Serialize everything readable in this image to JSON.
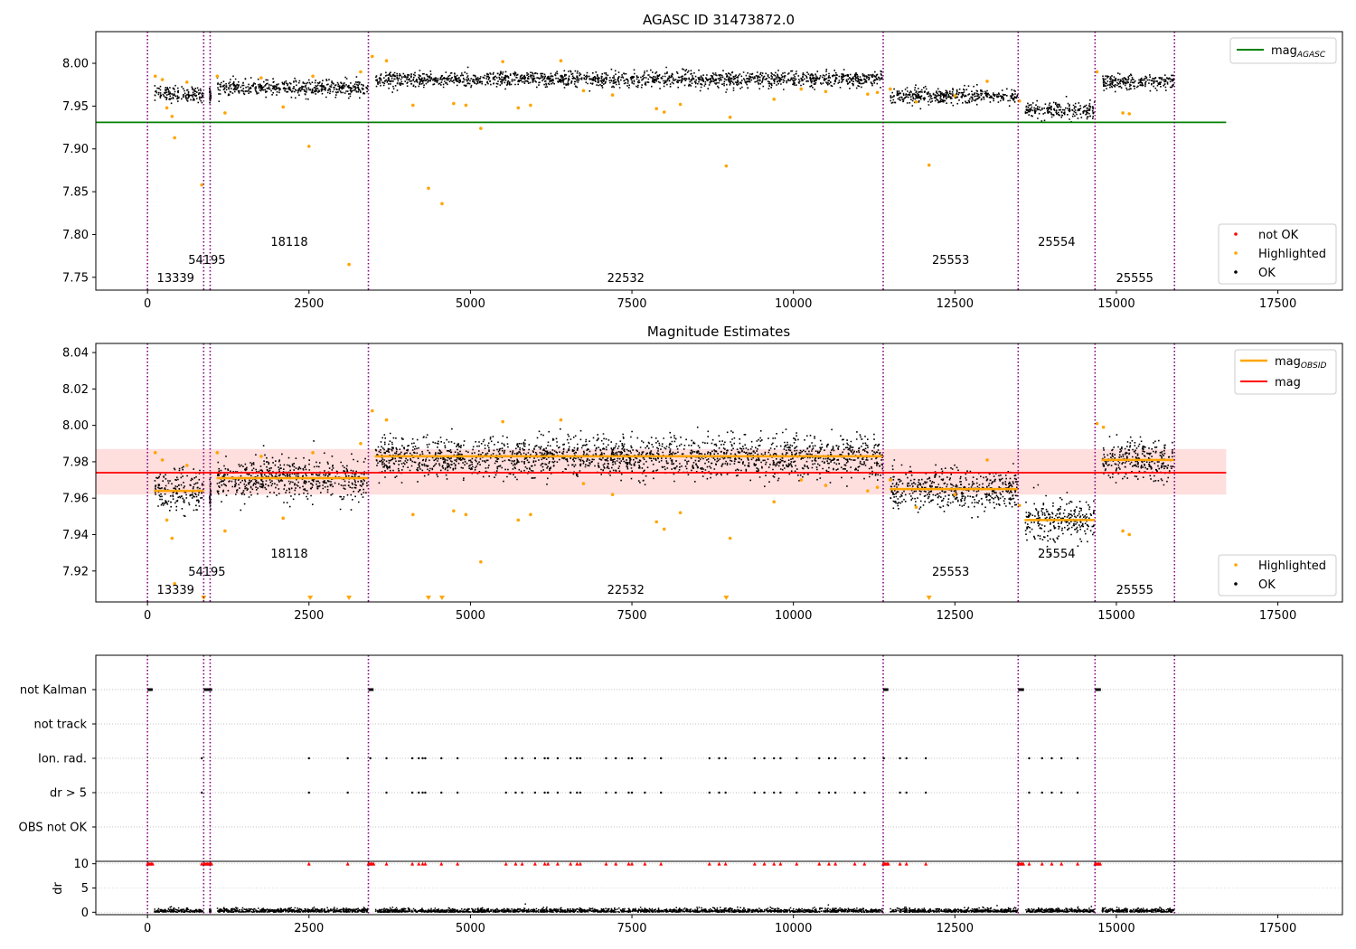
{
  "figure": {
    "obsid_boundaries": [
      0,
      870,
      970,
      3420,
      11390,
      13480,
      14670,
      15900
    ],
    "obsids": [
      {
        "label": "13339",
        "x_start": 0,
        "x_end": 870,
        "row": 0,
        "mag_obsid": 7.964
      },
      {
        "label": "54195",
        "x_start": 870,
        "x_end": 970,
        "row": 1,
        "mag_obsid": 7.962
      },
      {
        "label": "18118",
        "x_start": 970,
        "x_end": 3420,
        "row": 2,
        "mag_obsid": 7.971
      },
      {
        "label": "22532",
        "x_start": 3420,
        "x_end": 11390,
        "row": 0,
        "mag_obsid": 7.983
      },
      {
        "label": "25553",
        "x_start": 11390,
        "x_end": 13480,
        "row": 1,
        "mag_obsid": 7.965
      },
      {
        "label": "25554",
        "x_start": 13480,
        "x_end": 14670,
        "row": 2,
        "mag_obsid": 7.948
      },
      {
        "label": "25555",
        "x_start": 14670,
        "x_end": 15900,
        "row": 0,
        "mag_obsid": 7.981
      }
    ]
  },
  "chart_data": [
    {
      "type": "scatter",
      "title": "AGASC ID 31473872.0",
      "xlim": [
        -800,
        18500
      ],
      "ylim": [
        7.735,
        8.037
      ],
      "xticks": [
        0,
        2500,
        5000,
        7500,
        10000,
        12500,
        15000,
        17500
      ],
      "xtick_labels": [
        "0",
        "2500",
        "5000",
        "7500",
        "10000",
        "12500",
        "15000",
        "17500"
      ],
      "yticks": [
        7.75,
        7.8,
        7.85,
        7.9,
        7.95,
        8.0
      ],
      "ytick_labels": [
        "7.75",
        "7.80",
        "7.85",
        "7.90",
        "7.95",
        "8.00"
      ],
      "mag_agasc": 7.931,
      "mag_agasc_xrange": [
        -800,
        16700
      ],
      "legend_top": {
        "placement": "upper right",
        "entries": [
          {
            "label": "mag",
            "subscript": "AGASC",
            "color": "#008000"
          }
        ]
      },
      "legend_bottom": {
        "placement": "lower right",
        "entries": [
          {
            "label": "not OK",
            "color": "#ff0000"
          },
          {
            "label": "Highlighted",
            "color": "#ffa500"
          },
          {
            "label": "OK",
            "color": "#000000"
          }
        ]
      },
      "highlighted_points": [
        [
          120,
          7.985
        ],
        [
          230,
          7.981
        ],
        [
          300,
          7.948
        ],
        [
          380,
          7.938
        ],
        [
          420,
          7.913
        ],
        [
          610,
          7.978
        ],
        [
          840,
          7.858
        ],
        [
          1080,
          7.985
        ],
        [
          1200,
          7.942
        ],
        [
          1760,
          7.983
        ],
        [
          2100,
          7.949
        ],
        [
          2500,
          7.903
        ],
        [
          2560,
          7.985
        ],
        [
          3120,
          7.765
        ],
        [
          3300,
          7.99
        ],
        [
          3480,
          8.008
        ],
        [
          3700,
          8.003
        ],
        [
          4110,
          7.951
        ],
        [
          4350,
          7.854
        ],
        [
          4560,
          7.836
        ],
        [
          4740,
          7.953
        ],
        [
          4930,
          7.951
        ],
        [
          5160,
          7.924
        ],
        [
          5500,
          8.002
        ],
        [
          5740,
          7.948
        ],
        [
          5930,
          7.951
        ],
        [
          6400,
          8.003
        ],
        [
          6750,
          7.968
        ],
        [
          7200,
          7.963
        ],
        [
          7880,
          7.947
        ],
        [
          8000,
          7.943
        ],
        [
          8250,
          7.952
        ],
        [
          8960,
          7.88
        ],
        [
          9020,
          7.937
        ],
        [
          9700,
          7.958
        ],
        [
          10120,
          7.97
        ],
        [
          10500,
          7.967
        ],
        [
          11150,
          7.964
        ],
        [
          11300,
          7.966
        ],
        [
          11500,
          7.97
        ],
        [
          11900,
          7.955
        ],
        [
          12100,
          7.881
        ],
        [
          12500,
          7.962
        ],
        [
          13000,
          7.979
        ],
        [
          13500,
          7.956
        ],
        [
          14700,
          7.99
        ],
        [
          15100,
          7.942
        ],
        [
          15200,
          7.941
        ]
      ],
      "not_ok_points": []
    },
    {
      "type": "scatter",
      "title": "Magnitude Estimates",
      "xlim": [
        -800,
        18500
      ],
      "ylim": [
        7.903,
        8.045
      ],
      "xticks": [
        0,
        2500,
        5000,
        7500,
        10000,
        12500,
        15000,
        17500
      ],
      "xtick_labels": [
        "0",
        "2500",
        "5000",
        "7500",
        "10000",
        "12500",
        "15000",
        "17500"
      ],
      "yticks": [
        7.92,
        7.94,
        7.96,
        7.98,
        8.0,
        8.02,
        8.04
      ],
      "ytick_labels": [
        "7.92",
        "7.94",
        "7.96",
        "7.98",
        "8.00",
        "8.02",
        "8.04"
      ],
      "mag": 7.974,
      "mag_band": [
        7.962,
        7.987
      ],
      "mag_xrange": [
        -800,
        16700
      ],
      "legend_top": {
        "placement": "upper right",
        "entries": [
          {
            "label": "mag",
            "subscript": "OBSID",
            "color": "#ffa500"
          },
          {
            "label": "mag",
            "subscript": "",
            "color": "#ff0000"
          }
        ]
      },
      "legend_bottom": {
        "placement": "lower right",
        "entries": [
          {
            "label": "Highlighted",
            "color": "#ffa500"
          },
          {
            "label": "OK",
            "color": "#000000"
          }
        ]
      },
      "highlighted_points": [
        [
          120,
          7.985
        ],
        [
          230,
          7.981
        ],
        [
          300,
          7.948
        ],
        [
          380,
          7.938
        ],
        [
          420,
          7.913
        ],
        [
          610,
          7.978
        ],
        [
          1080,
          7.985
        ],
        [
          1200,
          7.942
        ],
        [
          1760,
          7.983
        ],
        [
          2100,
          7.949
        ],
        [
          2560,
          7.985
        ],
        [
          3300,
          7.99
        ],
        [
          3480,
          8.008
        ],
        [
          3700,
          8.003
        ],
        [
          4110,
          7.951
        ],
        [
          4740,
          7.953
        ],
        [
          4930,
          7.951
        ],
        [
          5160,
          7.925
        ],
        [
          5500,
          8.002
        ],
        [
          5740,
          7.948
        ],
        [
          5930,
          7.951
        ],
        [
          6400,
          8.003
        ],
        [
          6750,
          7.968
        ],
        [
          7200,
          7.962
        ],
        [
          7880,
          7.947
        ],
        [
          8000,
          7.943
        ],
        [
          8250,
          7.952
        ],
        [
          9020,
          7.938
        ],
        [
          9700,
          7.958
        ],
        [
          10120,
          7.97
        ],
        [
          10500,
          7.967
        ],
        [
          11150,
          7.964
        ],
        [
          11300,
          7.966
        ],
        [
          11500,
          7.97
        ],
        [
          11900,
          7.955
        ],
        [
          12500,
          7.962
        ],
        [
          13000,
          7.981
        ],
        [
          13500,
          7.956
        ],
        [
          14700,
          8.001
        ],
        [
          14800,
          7.999
        ],
        [
          15100,
          7.942
        ],
        [
          15200,
          7.94
        ]
      ],
      "below_range_markers": [
        870,
        2520,
        3120,
        4350,
        4560,
        8960,
        12100
      ]
    },
    {
      "type": "scatter",
      "title": "",
      "xlim": [
        -800,
        18500
      ],
      "categories": [
        "not Kalman",
        "not track",
        "Ion. rad.",
        "dr > 5",
        "OBS not OK"
      ],
      "category_flags": {
        "not Kalman": [
          [
            0,
            80
          ],
          [
            870,
            1000
          ],
          [
            3420,
            3500
          ],
          [
            11390,
            11470
          ],
          [
            13480,
            13570
          ],
          [
            14670,
            14760
          ]
        ],
        "not track": [],
        "Ion. rad.": [
          [
            840
          ],
          [
            2500
          ],
          [
            3100
          ],
          [
            3450
          ],
          [
            3700
          ],
          [
            4100
          ],
          [
            4200
          ],
          [
            4260
          ],
          [
            4300
          ],
          [
            4550
          ],
          [
            4800
          ],
          [
            5550
          ],
          [
            5700
          ],
          [
            5800
          ],
          [
            6000
          ],
          [
            6150
          ],
          [
            6200
          ],
          [
            6350
          ],
          [
            6550
          ],
          [
            6650
          ],
          [
            6700
          ],
          [
            7100
          ],
          [
            7250
          ],
          [
            7450
          ],
          [
            7500
          ],
          [
            7700
          ],
          [
            7950
          ],
          [
            8700
          ],
          [
            8850
          ],
          [
            8950
          ],
          [
            9400
          ],
          [
            9550
          ],
          [
            9700
          ],
          [
            9800
          ],
          [
            10050
          ],
          [
            10400
          ],
          [
            10550
          ],
          [
            10650
          ],
          [
            10950
          ],
          [
            11100
          ],
          [
            11400
          ],
          [
            11650
          ],
          [
            11750
          ],
          [
            12050
          ],
          [
            13650
          ],
          [
            13850
          ],
          [
            14000
          ],
          [
            14150
          ],
          [
            14400
          ]
        ],
        "dr > 5": [
          [
            840
          ],
          [
            2500
          ],
          [
            3100
          ],
          [
            3700
          ],
          [
            4100
          ],
          [
            4200
          ],
          [
            4260
          ],
          [
            4300
          ],
          [
            4550
          ],
          [
            4800
          ],
          [
            5550
          ],
          [
            5700
          ],
          [
            5800
          ],
          [
            6000
          ],
          [
            6150
          ],
          [
            6200
          ],
          [
            6350
          ],
          [
            6550
          ],
          [
            6650
          ],
          [
            6700
          ],
          [
            7100
          ],
          [
            7250
          ],
          [
            7450
          ],
          [
            7500
          ],
          [
            7700
          ],
          [
            7950
          ],
          [
            8700
          ],
          [
            8850
          ],
          [
            8950
          ],
          [
            9400
          ],
          [
            9550
          ],
          [
            9700
          ],
          [
            9800
          ],
          [
            10050
          ],
          [
            10400
          ],
          [
            10550
          ],
          [
            10650
          ],
          [
            10950
          ],
          [
            11100
          ],
          [
            11650
          ],
          [
            11750
          ],
          [
            12050
          ],
          [
            13650
          ],
          [
            13850
          ],
          [
            14000
          ],
          [
            14150
          ],
          [
            14400
          ]
        ],
        "OBS not OK": []
      },
      "dr_panel": {
        "ylabel": "dr",
        "yticks": [
          0,
          5,
          10
        ],
        "ytick_labels": [
          "0",
          "5",
          "10"
        ],
        "ylim": [
          -0.5,
          10.5
        ],
        "clipped_value": 10
      }
    }
  ]
}
